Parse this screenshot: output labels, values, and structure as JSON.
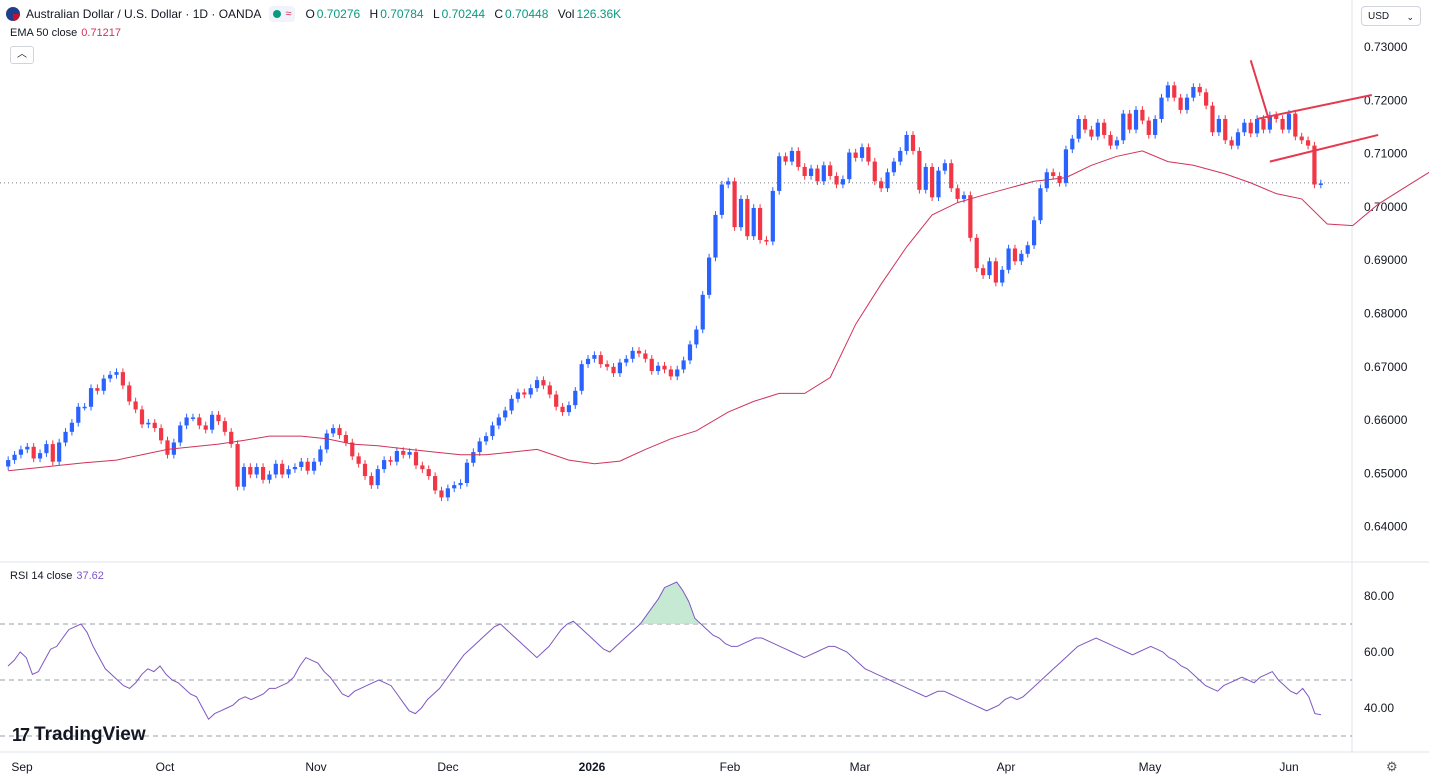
{
  "header": {
    "symbol": "Australian Dollar / U.S. Dollar · 1D · OANDA",
    "open_label": "O",
    "open": "0.70276",
    "high_label": "H",
    "high": "0.70784",
    "low_label": "L",
    "low": "0.70244",
    "close_label": "C",
    "close": "0.70448",
    "vol_label": "Vol",
    "vol": "126.36K",
    "pill_icon": "approx-icon"
  },
  "ema": {
    "label": "EMA 50 close",
    "value": "0.71217"
  },
  "rsi": {
    "label": "RSI 14 close",
    "value": "37.62"
  },
  "currency": {
    "label": "USD"
  },
  "brand": {
    "name": "TradingView"
  },
  "colors": {
    "up": "#2962ff",
    "down": "#f23645",
    "ema": "#d1335a",
    "rsi": "#7e57c2",
    "wedge": "#e53950"
  },
  "chart_data": [
    {
      "type": "candlestick",
      "title": "Australian Dollar / U.S. Dollar · 1D · OANDA",
      "ylim": [
        0.635,
        0.733
      ],
      "y_ticks": [
        "0.73000",
        "0.72000",
        "0.71000",
        "0.70000",
        "0.69000",
        "0.68000",
        "0.67000",
        "0.66000",
        "0.65000",
        "0.64000"
      ],
      "x_ticks": [
        "Sep",
        "Oct",
        "Nov",
        "Dec",
        "2026",
        "Feb",
        "Mar",
        "Apr",
        "May",
        "Jun"
      ],
      "closes": [
        0.6525,
        0.6535,
        0.6545,
        0.655,
        0.6528,
        0.6538,
        0.6555,
        0.6522,
        0.6558,
        0.6578,
        0.6595,
        0.6625,
        0.6625,
        0.666,
        0.6655,
        0.6678,
        0.6685,
        0.669,
        0.6665,
        0.6635,
        0.662,
        0.6592,
        0.6595,
        0.6585,
        0.6562,
        0.6535,
        0.6558,
        0.659,
        0.6605,
        0.6605,
        0.659,
        0.6582,
        0.661,
        0.6598,
        0.6578,
        0.6555,
        0.6475,
        0.6512,
        0.6498,
        0.6512,
        0.6488,
        0.6498,
        0.6518,
        0.6498,
        0.6508,
        0.6512,
        0.6522,
        0.6505,
        0.6522,
        0.6545,
        0.6575,
        0.6585,
        0.6572,
        0.6558,
        0.6532,
        0.6518,
        0.6495,
        0.6478,
        0.6508,
        0.6525,
        0.6522,
        0.6542,
        0.6535,
        0.654,
        0.6515,
        0.6508,
        0.6495,
        0.6468,
        0.6455,
        0.6472,
        0.6478,
        0.6482,
        0.652,
        0.654,
        0.656,
        0.657,
        0.659,
        0.6605,
        0.6618,
        0.664,
        0.6652,
        0.6648,
        0.666,
        0.6675,
        0.6665,
        0.6648,
        0.6625,
        0.6615,
        0.6628,
        0.6655,
        0.6705,
        0.6715,
        0.6722,
        0.6705,
        0.67,
        0.6688,
        0.6708,
        0.6715,
        0.673,
        0.6725,
        0.6715,
        0.6692,
        0.6702,
        0.6695,
        0.6682,
        0.6695,
        0.6712,
        0.6742,
        0.677,
        0.6835,
        0.6905,
        0.6985,
        0.7042,
        0.7048,
        0.6962,
        0.7015,
        0.6945,
        0.6998,
        0.6938,
        0.6935,
        0.703,
        0.7095,
        0.7085,
        0.7105,
        0.7075,
        0.7058,
        0.7072,
        0.7048,
        0.7078,
        0.7058,
        0.7042,
        0.7052,
        0.7102,
        0.7092,
        0.7112,
        0.7085,
        0.7048,
        0.7035,
        0.7065,
        0.7085,
        0.7105,
        0.7135,
        0.7105,
        0.7032,
        0.7075,
        0.7018,
        0.7068,
        0.7082,
        0.7035,
        0.7015,
        0.7022,
        0.6942,
        0.6885,
        0.6872,
        0.6898,
        0.6858,
        0.6882,
        0.6922,
        0.6898,
        0.6912,
        0.6928,
        0.6975,
        0.7035,
        0.7065,
        0.7058,
        0.7045,
        0.7108,
        0.7128,
        0.7165,
        0.7145,
        0.7132,
        0.7158,
        0.7135,
        0.7115,
        0.7125,
        0.7175,
        0.7145,
        0.7182,
        0.7162,
        0.7135,
        0.7165,
        0.7205,
        0.7228,
        0.7205,
        0.7182,
        0.7205,
        0.7225,
        0.7215,
        0.719,
        0.714,
        0.7165,
        0.7125,
        0.7115,
        0.714,
        0.7158,
        0.7138,
        0.7165,
        0.7145,
        0.7172,
        0.7165,
        0.7145,
        0.7175,
        0.7132,
        0.7125,
        0.7115,
        0.7042,
        0.7044
      ],
      "ema50": [
        0.6505,
        0.651,
        0.6515,
        0.652,
        0.6525,
        0.6535,
        0.6545,
        0.655,
        0.6555,
        0.6562,
        0.657,
        0.657,
        0.6565,
        0.6555,
        0.6552,
        0.6545,
        0.654,
        0.6535,
        0.6535,
        0.654,
        0.6545,
        0.6525,
        0.6518,
        0.6523,
        0.6545,
        0.6565,
        0.658,
        0.6615,
        0.6635,
        0.665,
        0.665,
        0.668,
        0.678,
        0.6855,
        0.6925,
        0.6985,
        0.7008,
        0.7022,
        0.7035,
        0.7048,
        0.7055,
        0.7078,
        0.7095,
        0.7105,
        0.7085,
        0.7078,
        0.7062,
        0.7045,
        0.7025,
        0.7015,
        0.6968,
        0.6965,
        0.7005,
        0.7035,
        0.7065,
        0.7112,
        0.7122,
        0.7132,
        0.7135,
        0.7127,
        0.7123
      ],
      "ema_x": [
        0,
        4,
        8,
        12,
        17,
        21,
        25,
        29,
        33,
        37,
        41,
        46,
        50,
        54,
        58,
        63,
        67,
        71,
        75,
        79,
        83,
        88,
        92,
        96,
        100,
        104,
        108,
        113,
        117,
        121,
        125,
        129,
        133,
        137,
        141,
        145,
        149,
        153,
        157,
        161,
        166,
        170,
        174,
        178,
        182,
        186,
        191,
        195,
        199,
        203,
        207,
        211,
        215,
        219,
        223,
        227,
        231,
        235,
        240,
        244,
        248
      ],
      "wedge_upper": [
        [
          196,
          0.7165
        ],
        [
          214,
          0.721
        ]
      ],
      "wedge_lower": [
        [
          198,
          0.7085
        ],
        [
          215,
          0.7135
        ]
      ],
      "wedge_lead": [
        [
          195,
          0.7275
        ],
        [
          198,
          0.7158
        ]
      ],
      "last_price_line": 0.7045
    },
    {
      "type": "line",
      "title": "RSI 14 close",
      "ylim": [
        32,
        86
      ],
      "y_ticks": [
        "80.00",
        "60.00",
        "40.00"
      ],
      "bands": [
        70,
        50,
        30
      ],
      "values": [
        55,
        57,
        60,
        58,
        52,
        53,
        57,
        61,
        62,
        65,
        68,
        69,
        70,
        67,
        62,
        58,
        54,
        52,
        50,
        48,
        47,
        49,
        52,
        54,
        53,
        55,
        52,
        50,
        49,
        47,
        45,
        44,
        40,
        36,
        38,
        39,
        40,
        41,
        43,
        44,
        43,
        44,
        45,
        47,
        47,
        48,
        49,
        51,
        55,
        58,
        57,
        56,
        53,
        51,
        48,
        45,
        44,
        46,
        47,
        48,
        49,
        50,
        49,
        48,
        45,
        42,
        39,
        38,
        40,
        43,
        45,
        47,
        50,
        53,
        56,
        59,
        61,
        63,
        65,
        67,
        69,
        70,
        68,
        66,
        64,
        62,
        60,
        58,
        60,
        62,
        65,
        68,
        70,
        71,
        69,
        67,
        65,
        63,
        61,
        60,
        62,
        64,
        66,
        68,
        70,
        73,
        76,
        79,
        83,
        84,
        85,
        82,
        78,
        72,
        70,
        68,
        66,
        65,
        63,
        62,
        62,
        63,
        64,
        65,
        65,
        64,
        63,
        62,
        61,
        60,
        59,
        58,
        59,
        60,
        61,
        62,
        62,
        61,
        60,
        58,
        56,
        54,
        53,
        52,
        51,
        50,
        49,
        48,
        47,
        46,
        45,
        44,
        45,
        46,
        46,
        45,
        44,
        43,
        42,
        41,
        40,
        39,
        40,
        41,
        43,
        44,
        43,
        44,
        46,
        48,
        50,
        52,
        54,
        56,
        58,
        60,
        62,
        63,
        64,
        65,
        64,
        63,
        62,
        61,
        60,
        59,
        60,
        61,
        62,
        61,
        60,
        58,
        57,
        55,
        54,
        52,
        50,
        48,
        47,
        46,
        48,
        49,
        50,
        51,
        50,
        49,
        51,
        52,
        53,
        50,
        48,
        46,
        45,
        47,
        44,
        38,
        37.62
      ]
    }
  ]
}
